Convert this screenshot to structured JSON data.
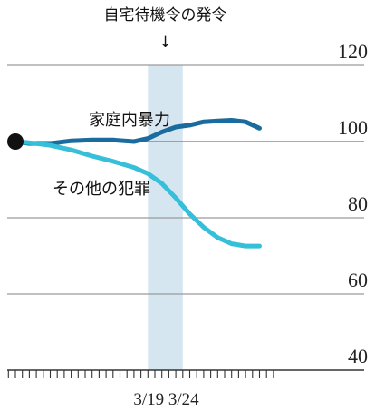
{
  "chart_data": {
    "type": "line",
    "title": "",
    "xlabel": "",
    "ylabel": "",
    "ylim": [
      40,
      120
    ],
    "yticks": [
      40,
      60,
      80,
      100,
      120
    ],
    "reference_value": 100,
    "x_ticks": [
      {
        "day": 19,
        "label": "3/19"
      },
      {
        "day": 24,
        "label": "3/24"
      }
    ],
    "highlight": {
      "from_day": 19,
      "to_day": 24,
      "label": "自宅待機令の発令",
      "arrow": "↓"
    },
    "series": [
      {
        "name": "家庭内暴力",
        "color": "#1a6c9e",
        "x": [
          0,
          2,
          5,
          8,
          11,
          14,
          17,
          19,
          21,
          23,
          25,
          27,
          29,
          31,
          33,
          35
        ],
        "y": [
          100,
          99.5,
          99.5,
          100.2,
          100.4,
          100.4,
          100,
          100.8,
          102.5,
          103.8,
          104.3,
          105.2,
          105.4,
          105.6,
          105.2,
          103.5
        ]
      },
      {
        "name": "その他の犯罪",
        "color": "#35bfd8",
        "x": [
          0,
          2,
          5,
          8,
          11,
          14,
          17,
          19,
          21,
          23,
          25,
          27,
          29,
          31,
          33,
          35
        ],
        "y": [
          100,
          99.7,
          99,
          97.8,
          96.2,
          94.8,
          93.2,
          91.6,
          89,
          85.2,
          81,
          77.5,
          74.8,
          73.2,
          72.6,
          72.6
        ]
      }
    ]
  }
}
